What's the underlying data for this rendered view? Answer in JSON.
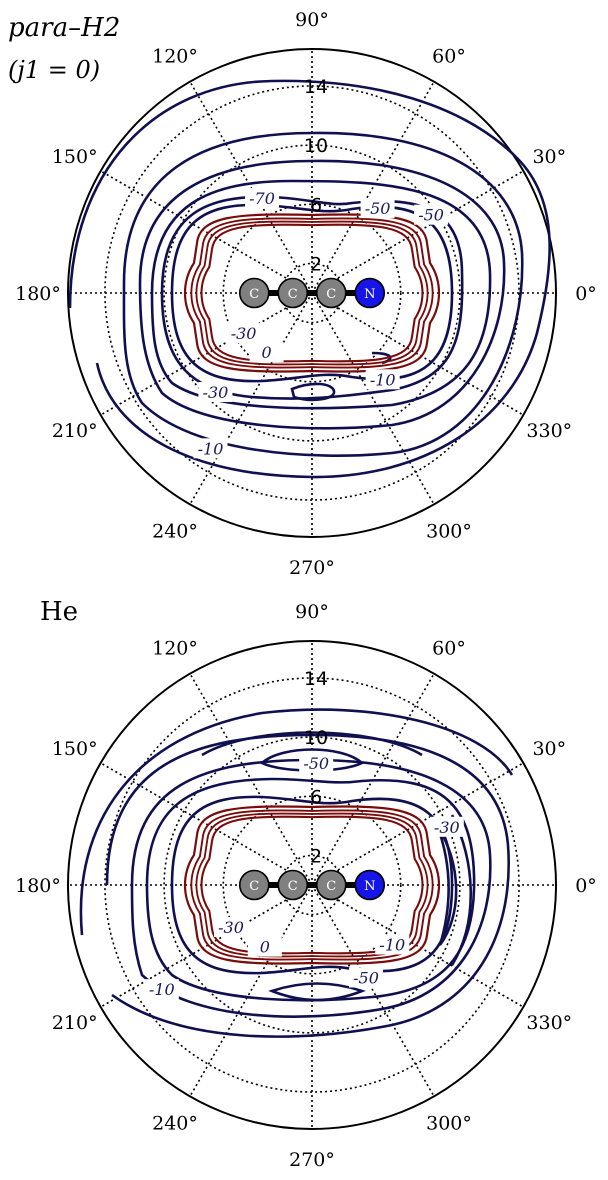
{
  "chart_data": [
    {
      "type": "polar-contour",
      "title": "para–H2",
      "subtitle": "(j1 = 0)",
      "angle_ticks": [
        {
          "deg": 0,
          "label": "0°"
        },
        {
          "deg": 30,
          "label": "30°"
        },
        {
          "deg": 60,
          "label": "60°"
        },
        {
          "deg": 90,
          "label": "90°"
        },
        {
          "deg": 120,
          "label": "120°"
        },
        {
          "deg": 150,
          "label": "150°"
        },
        {
          "deg": 180,
          "label": "180°"
        },
        {
          "deg": 210,
          "label": "210°"
        },
        {
          "deg": 240,
          "label": "240°"
        },
        {
          "deg": 270,
          "label": "270°"
        },
        {
          "deg": 300,
          "label": "300°"
        },
        {
          "deg": 330,
          "label": "330°"
        }
      ],
      "radial_ticks": [
        {
          "value": 2,
          "label": "2"
        },
        {
          "value": 6,
          "label": "6"
        },
        {
          "value": 10,
          "label": "10"
        },
        {
          "value": 14,
          "label": "14"
        }
      ],
      "rmax": 16.5,
      "grid": true,
      "molecule": [
        "C",
        "C",
        "C",
        "N"
      ],
      "contour_labels": [
        {
          "text": "-70",
          "r": 7.2,
          "theta": 118
        },
        {
          "text": "-50",
          "r": 7.2,
          "theta": 52
        },
        {
          "text": "-50",
          "r": 9.6,
          "theta": 33
        },
        {
          "text": "-30",
          "r": 5.4,
          "theta": 211
        },
        {
          "text": "0",
          "r": 5.1,
          "theta": 233
        },
        {
          "text": "-10",
          "r": 7.6,
          "theta": 309
        },
        {
          "text": "-30",
          "r": 9.4,
          "theta": 226
        },
        {
          "text": "-10",
          "r": 12.6,
          "theta": 237
        }
      ]
    },
    {
      "type": "polar-contour",
      "title": "He",
      "subtitle": "",
      "angle_ticks": [
        {
          "deg": 0,
          "label": "0°"
        },
        {
          "deg": 30,
          "label": "30°"
        },
        {
          "deg": 60,
          "label": "60°"
        },
        {
          "deg": 90,
          "label": "90°"
        },
        {
          "deg": 120,
          "label": "120°"
        },
        {
          "deg": 150,
          "label": "150°"
        },
        {
          "deg": 180,
          "label": "180°"
        },
        {
          "deg": 210,
          "label": "210°"
        },
        {
          "deg": 240,
          "label": "240°"
        },
        {
          "deg": 270,
          "label": "270°"
        },
        {
          "deg": 300,
          "label": "300°"
        },
        {
          "deg": 330,
          "label": "330°"
        }
      ],
      "radial_ticks": [
        {
          "value": 2,
          "label": "2"
        },
        {
          "value": 6,
          "label": "6"
        },
        {
          "value": 10,
          "label": "10"
        },
        {
          "value": 14,
          "label": "14"
        }
      ],
      "rmax": 16.5,
      "grid": true,
      "molecule": [
        "C",
        "C",
        "C",
        "N"
      ],
      "contour_labels": [
        {
          "text": "-50",
          "r": 8.2,
          "theta": 88
        },
        {
          "text": "-30",
          "r": 9.9,
          "theta": 23
        },
        {
          "text": "-30",
          "r": 6.2,
          "theta": 208
        },
        {
          "text": "0",
          "r": 5.3,
          "theta": 233
        },
        {
          "text": "-10",
          "r": 6.8,
          "theta": 323
        },
        {
          "text": "-50",
          "r": 7.3,
          "theta": 300
        },
        {
          "text": "-10",
          "r": 12.4,
          "theta": 215
        }
      ]
    }
  ]
}
